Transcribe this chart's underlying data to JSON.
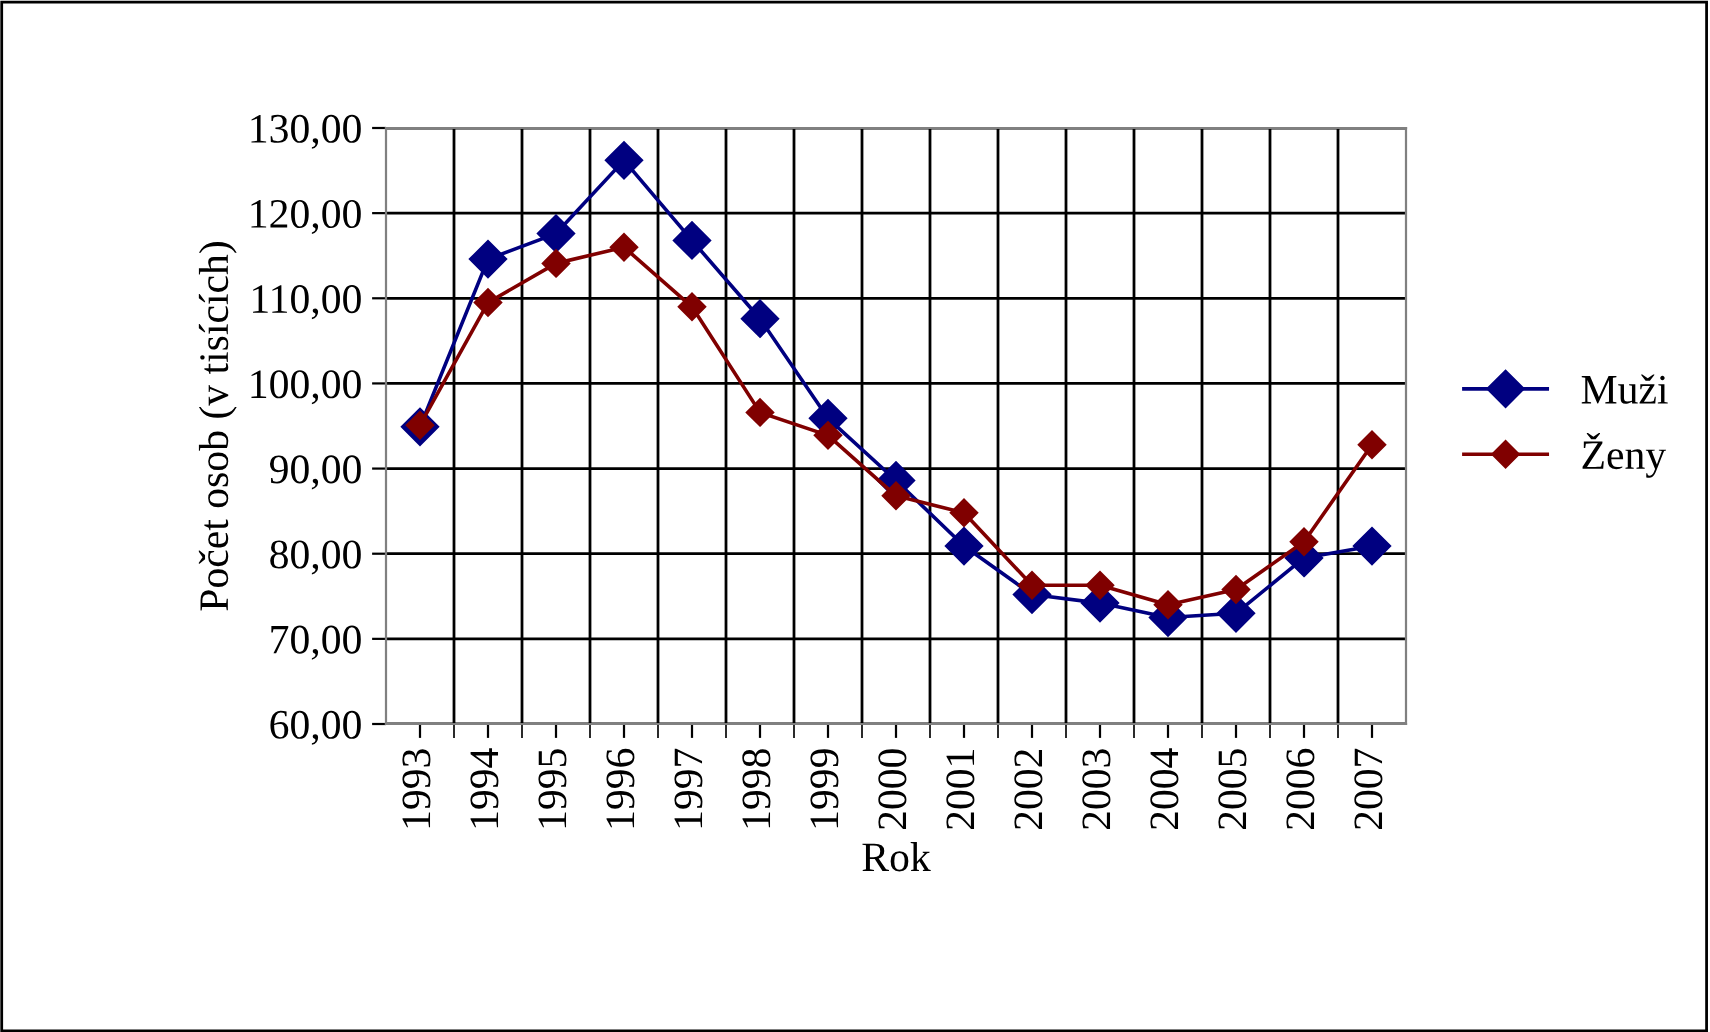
{
  "chart_data": {
    "type": "line",
    "xlabel": "Rok",
    "ylabel": "Počet osob (v tisících)",
    "categories": [
      "1993",
      "1994",
      "1995",
      "1996",
      "1997",
      "1998",
      "1999",
      "2000",
      "2001",
      "2002",
      "2003",
      "2004",
      "2005",
      "2006",
      "2007"
    ],
    "series": [
      {
        "name": "Muži",
        "color": "#000080",
        "values": [
          94.9,
          114.6,
          117.6,
          126.2,
          116.8,
          107.6,
          95.9,
          88.6,
          80.9,
          75.2,
          74.2,
          72.5,
          73.0,
          79.5,
          80.9
        ]
      },
      {
        "name": "Ženy",
        "color": "#800000",
        "values": [
          95.1,
          109.5,
          114.1,
          116.0,
          109.0,
          96.6,
          93.9,
          86.8,
          84.8,
          76.3,
          76.3,
          74.0,
          75.8,
          81.4,
          92.8
        ]
      }
    ],
    "ylim": [
      60,
      130
    ],
    "yticks": [
      {
        "value": 60,
        "label": "60,00"
      },
      {
        "value": 70,
        "label": "70,00"
      },
      {
        "value": 80,
        "label": "80,00"
      },
      {
        "value": 90,
        "label": "90,00"
      },
      {
        "value": 100,
        "label": "100,00"
      },
      {
        "value": 110,
        "label": "110,00"
      },
      {
        "value": 120,
        "label": "120,00"
      },
      {
        "value": 130,
        "label": "130,00"
      }
    ],
    "grid": true,
    "legend": "right",
    "marker": "diamond",
    "line_style": "solid"
  }
}
